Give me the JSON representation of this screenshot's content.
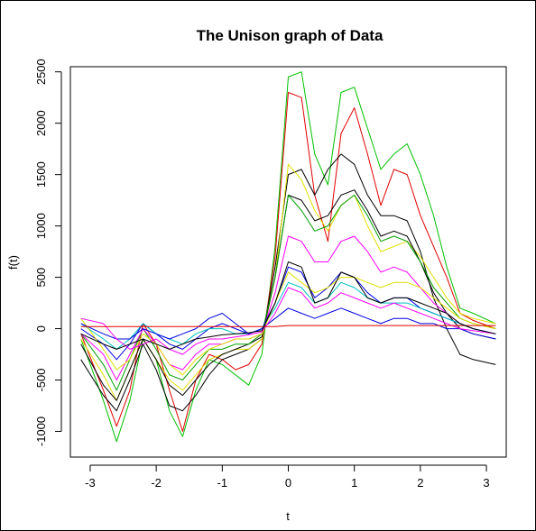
{
  "chart_data": {
    "type": "line",
    "title": "The Unison graph of Data",
    "xlabel": "t",
    "ylabel": "f(t)",
    "xlim": [
      -3.3,
      3.3
    ],
    "ylim": [
      -1250,
      2550
    ],
    "xticks": [
      -3,
      -2,
      -1,
      0,
      1,
      2,
      3
    ],
    "xtick_labels": [
      "-3",
      "-2",
      "-1",
      "0",
      "1",
      "2",
      "3"
    ],
    "yticks": [
      -1000,
      -500,
      0,
      500,
      1000,
      1500,
      2000,
      2500
    ],
    "ytick_labels": [
      "-1000",
      "-500",
      "0",
      "500",
      "1000",
      "1500",
      "2000",
      "2500"
    ],
    "grid": false,
    "legend": "none",
    "x": [
      -3.14,
      -2.8,
      -2.6,
      -2.4,
      -2.2,
      -2.0,
      -1.8,
      -1.6,
      -1.4,
      -1.2,
      -1.0,
      -0.8,
      -0.6,
      -0.4,
      -0.2,
      0.0,
      0.2,
      0.4,
      0.6,
      0.8,
      1.0,
      1.2,
      1.4,
      1.6,
      1.8,
      2.0,
      2.2,
      2.4,
      2.6,
      2.8,
      3.14
    ],
    "series": [
      {
        "color": "#00c000",
        "values": [
          -100,
          -700,
          -1100,
          -700,
          -100,
          -300,
          -800,
          -1050,
          -600,
          -300,
          -350,
          -450,
          -550,
          -250,
          800,
          2450,
          2500,
          1700,
          1400,
          2300,
          2350,
          1950,
          1550,
          1700,
          1800,
          1500,
          1100,
          600,
          200,
          150,
          50
        ]
      },
      {
        "color": "#e00000",
        "values": [
          -50,
          -600,
          -950,
          -600,
          50,
          -150,
          -600,
          -1000,
          -500,
          -250,
          -300,
          -400,
          -350,
          -150,
          700,
          2300,
          2250,
          1300,
          850,
          1900,
          2150,
          1700,
          1200,
          1550,
          1500,
          1100,
          800,
          500,
          150,
          80,
          0
        ]
      },
      {
        "color": "#000000",
        "values": [
          -300,
          -650,
          -800,
          -500,
          -150,
          -400,
          -750,
          -800,
          -650,
          -450,
          -300,
          -250,
          -200,
          -100,
          600,
          1500,
          1550,
          1300,
          1550,
          1700,
          1600,
          1300,
          1100,
          1100,
          1050,
          750,
          300,
          0,
          -250,
          -300,
          -350
        ]
      },
      {
        "color": "#e0e000",
        "values": [
          -100,
          -450,
          -700,
          -400,
          -100,
          -300,
          -500,
          -600,
          -450,
          -300,
          -250,
          -200,
          -200,
          -100,
          500,
          1600,
          1450,
          1150,
          950,
          1200,
          1300,
          1000,
          750,
          800,
          850,
          700,
          500,
          300,
          150,
          100,
          50
        ]
      },
      {
        "color": "#000000",
        "values": [
          -150,
          -550,
          -700,
          -400,
          -100,
          -300,
          -550,
          -650,
          -500,
          -350,
          -250,
          -200,
          -150,
          -80,
          500,
          1300,
          1250,
          1050,
          1100,
          1300,
          1350,
          1150,
          900,
          950,
          900,
          650,
          350,
          150,
          0,
          -50,
          -100
        ]
      },
      {
        "color": "#00a000",
        "values": [
          -50,
          -350,
          -600,
          -300,
          0,
          -200,
          -450,
          -500,
          -350,
          -200,
          -200,
          -150,
          -150,
          -50,
          500,
          1300,
          1150,
          950,
          1000,
          1200,
          1300,
          1100,
          850,
          900,
          850,
          650,
          400,
          250,
          100,
          50,
          0
        ]
      },
      {
        "color": "#ff00ff",
        "values": [
          -50,
          -250,
          -500,
          -250,
          0,
          -150,
          -350,
          -400,
          -250,
          -150,
          -150,
          -100,
          -100,
          -50,
          350,
          900,
          850,
          650,
          650,
          850,
          900,
          750,
          550,
          600,
          550,
          400,
          250,
          150,
          50,
          0,
          -50
        ]
      },
      {
        "color": "#0000e0",
        "values": [
          0,
          -150,
          -300,
          -150,
          50,
          -50,
          -150,
          -200,
          -100,
          0,
          50,
          0,
          -50,
          0,
          250,
          600,
          550,
          300,
          400,
          550,
          500,
          350,
          250,
          300,
          300,
          200,
          150,
          100,
          50,
          0,
          -50
        ]
      },
      {
        "color": "#00c0c0",
        "values": [
          50,
          -100,
          -200,
          -100,
          50,
          -50,
          -100,
          -150,
          -50,
          0,
          0,
          -50,
          -50,
          0,
          200,
          450,
          400,
          250,
          300,
          450,
          400,
          300,
          250,
          250,
          250,
          200,
          150,
          100,
          50,
          0,
          -50
        ]
      },
      {
        "color": "#e0e000",
        "values": [
          100,
          -200,
          -400,
          -300,
          -50,
          -150,
          -350,
          -450,
          -300,
          -200,
          -150,
          -100,
          -100,
          -50,
          250,
          550,
          450,
          350,
          400,
          500,
          500,
          450,
          400,
          450,
          450,
          400,
          300,
          200,
          100,
          50,
          0
        ]
      },
      {
        "color": "#0000e0",
        "values": [
          50,
          -50,
          -100,
          -100,
          0,
          -50,
          -100,
          -50,
          0,
          100,
          150,
          50,
          -50,
          0,
          100,
          200,
          150,
          100,
          150,
          200,
          150,
          100,
          50,
          100,
          100,
          50,
          50,
          0,
          0,
          -50,
          -100
        ]
      },
      {
        "color": "#ff00ff",
        "values": [
          100,
          50,
          -100,
          -200,
          -150,
          -100,
          -200,
          -250,
          -150,
          -100,
          -100,
          -80,
          -60,
          -30,
          150,
          400,
          350,
          200,
          250,
          350,
          300,
          250,
          200,
          250,
          200,
          150,
          100,
          50,
          0,
          -20,
          -50
        ]
      },
      {
        "color": "#e00000",
        "values": [
          20,
          20,
          20,
          20,
          20,
          20,
          20,
          20,
          20,
          20,
          20,
          20,
          20,
          20,
          20,
          30,
          30,
          30,
          30,
          30,
          30,
          30,
          30,
          30,
          30,
          30,
          30,
          30,
          30,
          30,
          30
        ]
      },
      {
        "color": "#000000",
        "values": [
          -50,
          -150,
          -200,
          -150,
          -100,
          -150,
          -200,
          -150,
          -100,
          -80,
          -60,
          -50,
          -40,
          -20,
          250,
          650,
          600,
          250,
          300,
          550,
          500,
          300,
          250,
          300,
          300,
          250,
          200,
          150,
          50,
          0,
          -50
        ]
      }
    ]
  }
}
